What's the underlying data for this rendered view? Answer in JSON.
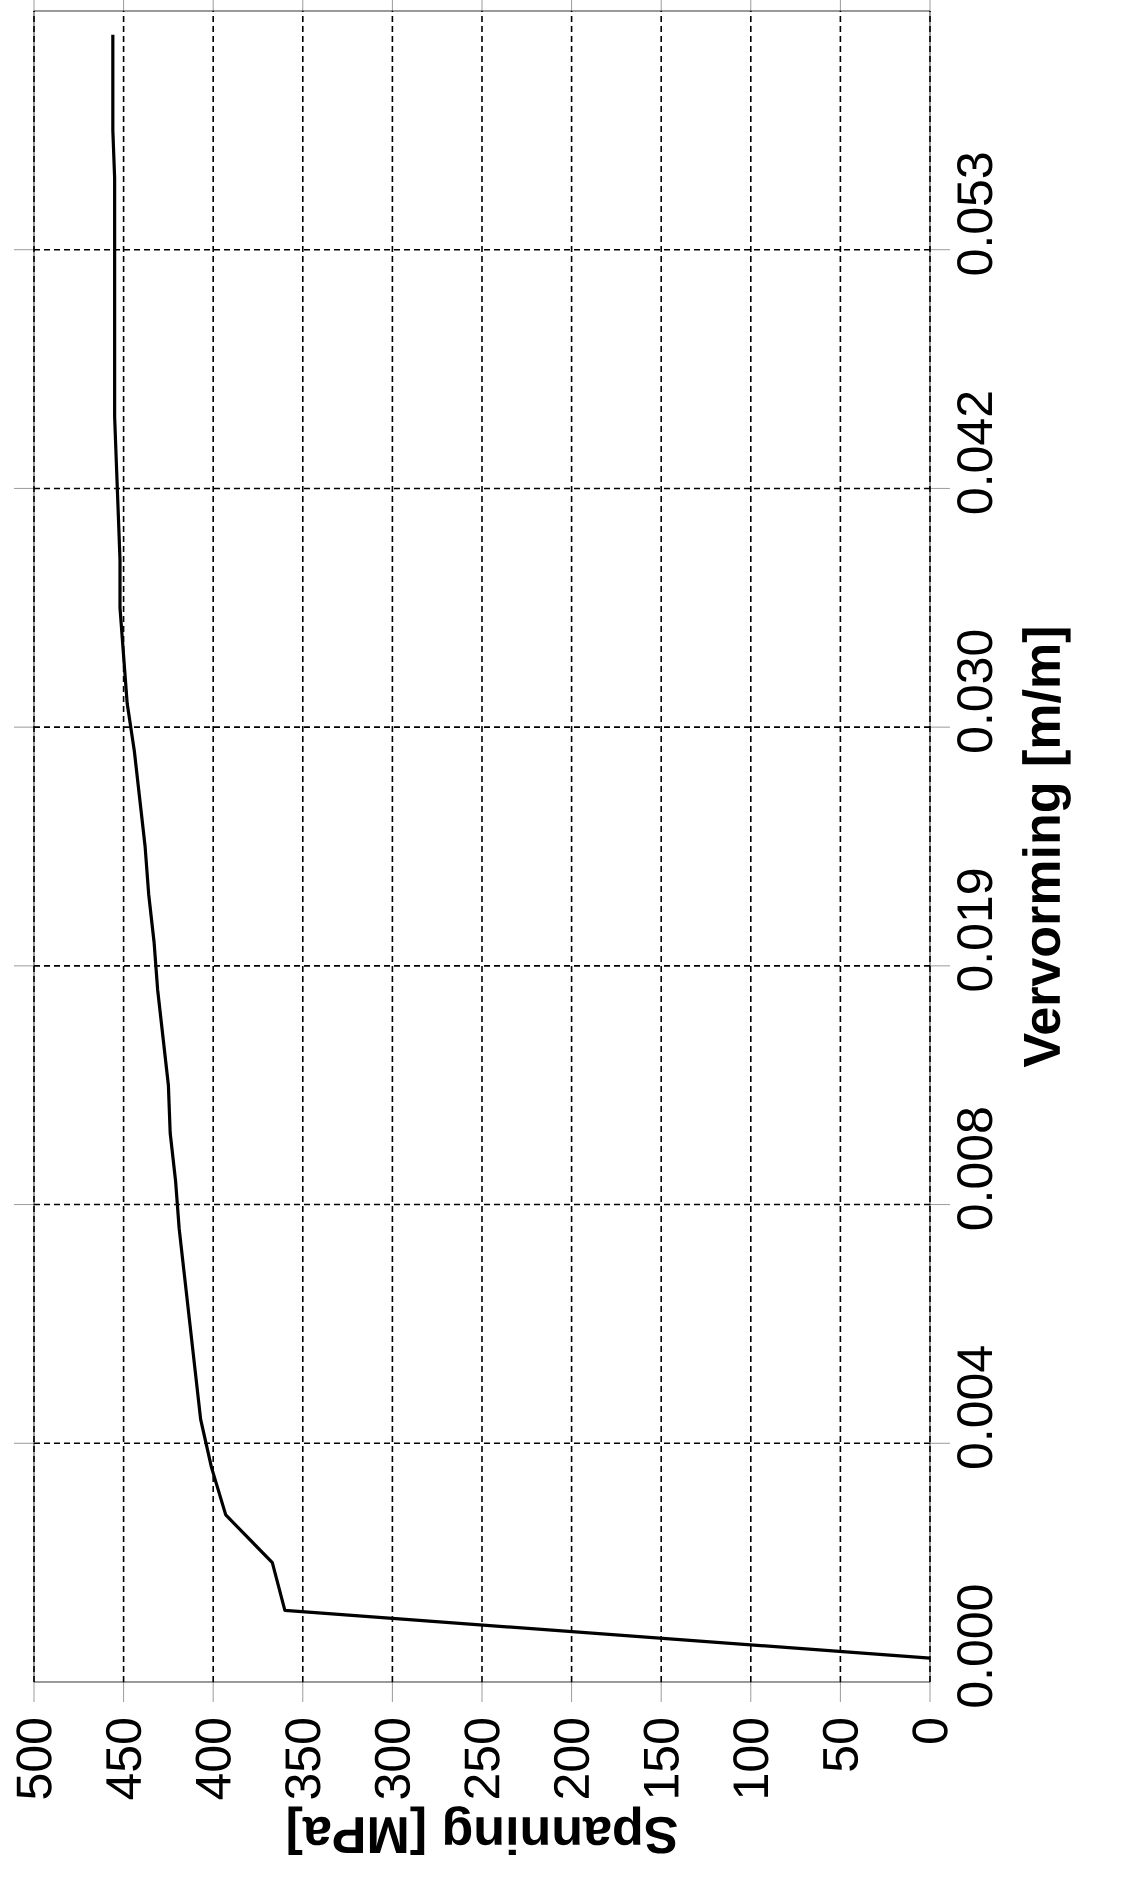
{
  "chart_data": {
    "type": "line",
    "orientation": "horizontal",
    "xlabel": "Spanning [MPa]",
    "ylabel": "Vervorming [m/m]",
    "categories": [
      null,
      null,
      null,
      null,
      "0.053",
      null,
      null,
      null,
      null,
      "0.042",
      null,
      null,
      null,
      null,
      "0.030",
      null,
      null,
      null,
      null,
      "0.019",
      null,
      null,
      null,
      null,
      "0.008",
      null,
      null,
      null,
      null,
      "0.004",
      null,
      null,
      null,
      null,
      "0.000"
    ],
    "series": [
      {
        "color": "#000000",
        "values": [
          456,
          456,
          456,
          455,
          455,
          455,
          455,
          455,
          455,
          454,
          453,
          452,
          452,
          450,
          448,
          444,
          441,
          438,
          436,
          433,
          431,
          428,
          425,
          424,
          421,
          419,
          416,
          413,
          410,
          407,
          401,
          393,
          367,
          360,
          0
        ]
      }
    ],
    "xlim": [
      500,
      0
    ],
    "xticks": [
      0,
      50,
      100,
      150,
      200,
      250,
      300,
      350,
      400,
      450,
      500
    ],
    "grid": true
  }
}
